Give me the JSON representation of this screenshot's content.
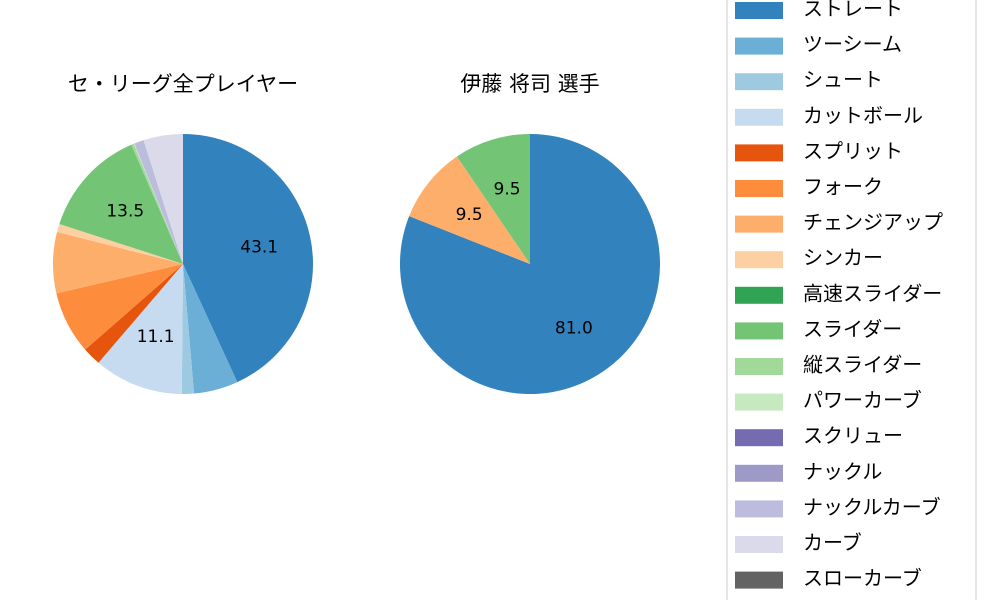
{
  "chart_data": [
    {
      "type": "pie",
      "title": "セ・リーグ全プレイヤー",
      "categories": [
        "ストレート",
        "ツーシーム",
        "シュート",
        "カットボール",
        "スプリット",
        "フォーク",
        "チェンジアップ",
        "シンカー",
        "高速スライダー",
        "スライダー",
        "縦スライダー",
        "パワーカーブ",
        "スクリュー",
        "ナックル",
        "ナックルカーブ",
        "カーブ",
        "スローカーブ"
      ],
      "values": [
        43.1,
        5.5,
        1.5,
        11.1,
        2.3,
        7.8,
        7.6,
        1.0,
        0,
        13.5,
        0.3,
        0.1,
        0,
        0,
        1.2,
        4.9,
        0
      ],
      "value_labels": [
        "43.1",
        null,
        null,
        "11.1",
        null,
        null,
        null,
        null,
        null,
        "13.5",
        null,
        null,
        null,
        null,
        null,
        null,
        null
      ],
      "colors": [
        "#3182bd",
        "#6baed6",
        "#9ecae1",
        "#c6dbef",
        "#e6550d",
        "#fd8d3c",
        "#fdae6b",
        "#fdd0a2",
        "#31a354",
        "#74c476",
        "#a1d99b",
        "#c7e9c0",
        "#756bb1",
        "#9e9ac8",
        "#bcbddc",
        "#dadaeb",
        "#636363"
      ]
    },
    {
      "type": "pie",
      "title": "伊藤 将司  選手",
      "categories": [
        "ストレート",
        "ツーシーム",
        "シュート",
        "カットボール",
        "スプリット",
        "フォーク",
        "チェンジアップ",
        "シンカー",
        "高速スライダー",
        "スライダー",
        "縦スライダー",
        "パワーカーブ",
        "スクリュー",
        "ナックル",
        "ナックルカーブ",
        "カーブ",
        "スローカーブ"
      ],
      "values": [
        81.0,
        0,
        0,
        0,
        0,
        0,
        9.5,
        0,
        0,
        9.5,
        0,
        0,
        0,
        0,
        0,
        0,
        0
      ],
      "value_labels": [
        "81.0",
        null,
        null,
        null,
        null,
        null,
        "9.5",
        null,
        null,
        "9.5",
        null,
        null,
        null,
        null,
        null,
        null,
        null
      ],
      "colors": [
        "#3182bd",
        "#6baed6",
        "#9ecae1",
        "#c6dbef",
        "#e6550d",
        "#fd8d3c",
        "#fdae6b",
        "#fdd0a2",
        "#31a354",
        "#74c476",
        "#a1d99b",
        "#c7e9c0",
        "#756bb1",
        "#9e9ac8",
        "#bcbddc",
        "#dadaeb",
        "#636363"
      ]
    }
  ]
}
